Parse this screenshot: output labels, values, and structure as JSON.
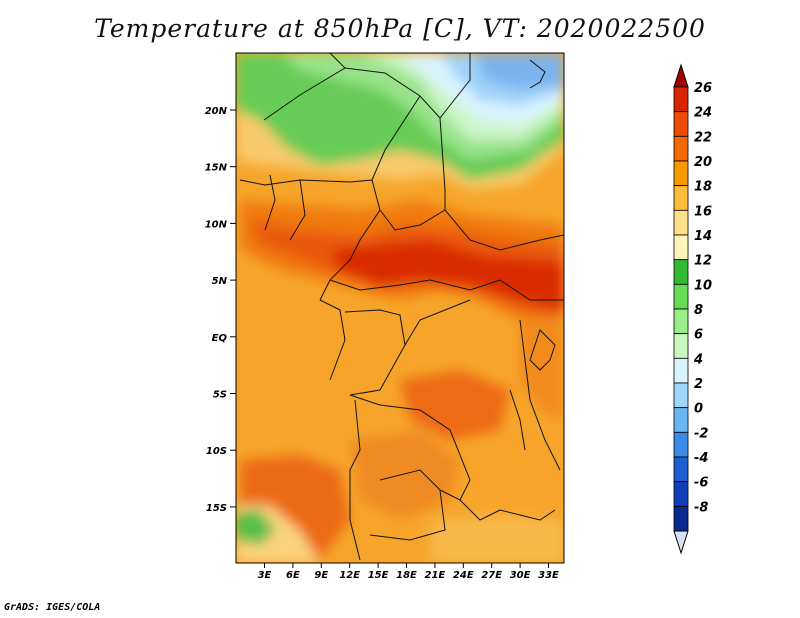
{
  "title": "Temperature at 850hPa [C], VT: 2020022500",
  "credit": "GrADS: IGES/COLA",
  "map": {
    "lat_labels": [
      "20N",
      "15N",
      "10N",
      "5N",
      "EQ",
      "5S",
      "10S",
      "15S"
    ],
    "lon_labels": [
      "3E",
      "6E",
      "9E",
      "12E",
      "15E",
      "18E",
      "21E",
      "24E",
      "27E",
      "30E",
      "33E"
    ]
  },
  "colorbar": {
    "labels": [
      "26",
      "24",
      "22",
      "20",
      "18",
      "16",
      "14",
      "12",
      "10",
      "8",
      "6",
      "4",
      "2",
      "0",
      "-2",
      "-4",
      "-6",
      "-8"
    ],
    "colors": [
      "#a50000",
      "#d92600",
      "#ee4a00",
      "#f26a00",
      "#f79a00",
      "#fbbe3c",
      "#fde08a",
      "#fff5b8",
      "#33bb33",
      "#66dd55",
      "#99ee88",
      "#c8f7c0",
      "#d8f2ff",
      "#9fd8fb",
      "#6ab6f2",
      "#3a8ae6",
      "#1e5fd0",
      "#0f3fb8",
      "#0a2a90",
      "#06107a"
    ]
  }
}
